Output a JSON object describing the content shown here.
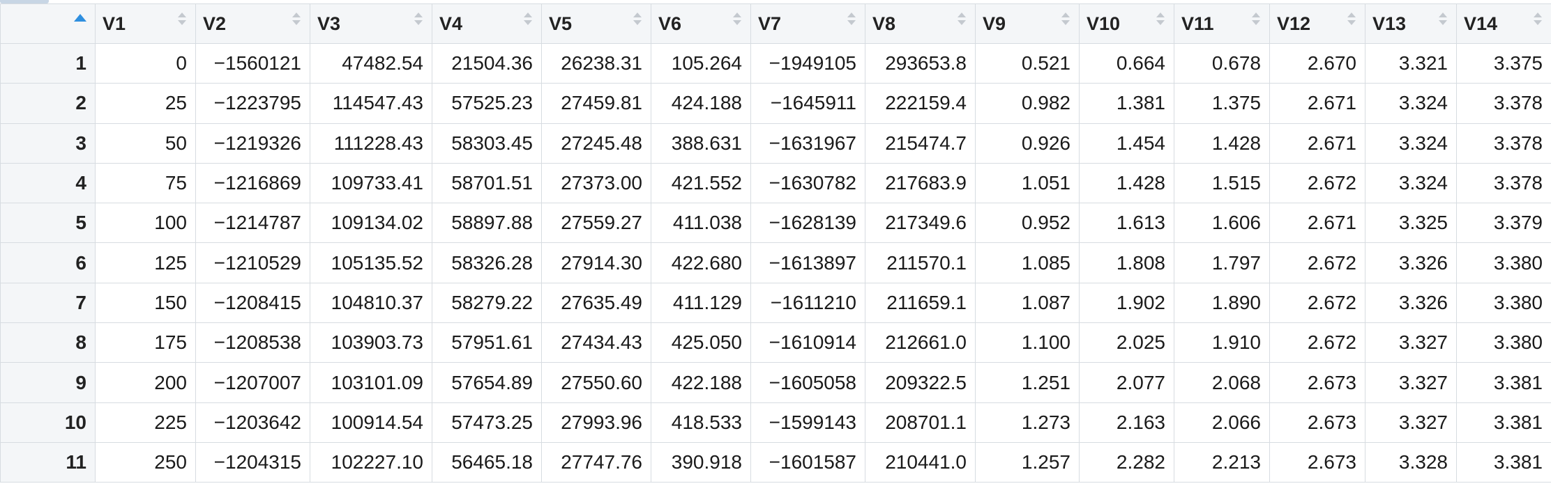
{
  "table": {
    "columns": [
      "V1",
      "V2",
      "V3",
      "V4",
      "V5",
      "V6",
      "V7",
      "V8",
      "V9",
      "V10",
      "V11",
      "V12",
      "V13",
      "V14"
    ],
    "sorted_column": "row-index",
    "sort_direction": "ascending",
    "rows": [
      {
        "index": "1",
        "cells": [
          "0",
          "−1560121",
          "47482.54",
          "21504.36",
          "26238.31",
          "105.264",
          "−1949105",
          "293653.8",
          "0.521",
          "0.664",
          "0.678",
          "2.670",
          "3.321",
          "3.375"
        ]
      },
      {
        "index": "2",
        "cells": [
          "25",
          "−1223795",
          "114547.43",
          "57525.23",
          "27459.81",
          "424.188",
          "−1645911",
          "222159.4",
          "0.982",
          "1.381",
          "1.375",
          "2.671",
          "3.324",
          "3.378"
        ]
      },
      {
        "index": "3",
        "cells": [
          "50",
          "−1219326",
          "111228.43",
          "58303.45",
          "27245.48",
          "388.631",
          "−1631967",
          "215474.7",
          "0.926",
          "1.454",
          "1.428",
          "2.671",
          "3.324",
          "3.378"
        ]
      },
      {
        "index": "4",
        "cells": [
          "75",
          "−1216869",
          "109733.41",
          "58701.51",
          "27373.00",
          "421.552",
          "−1630782",
          "217683.9",
          "1.051",
          "1.428",
          "1.515",
          "2.672",
          "3.324",
          "3.378"
        ]
      },
      {
        "index": "5",
        "cells": [
          "100",
          "−1214787",
          "109134.02",
          "58897.88",
          "27559.27",
          "411.038",
          "−1628139",
          "217349.6",
          "0.952",
          "1.613",
          "1.606",
          "2.671",
          "3.325",
          "3.379"
        ]
      },
      {
        "index": "6",
        "cells": [
          "125",
          "−1210529",
          "105135.52",
          "58326.28",
          "27914.30",
          "422.680",
          "−1613897",
          "211570.1",
          "1.085",
          "1.808",
          "1.797",
          "2.672",
          "3.326",
          "3.380"
        ]
      },
      {
        "index": "7",
        "cells": [
          "150",
          "−1208415",
          "104810.37",
          "58279.22",
          "27635.49",
          "411.129",
          "−1611210",
          "211659.1",
          "1.087",
          "1.902",
          "1.890",
          "2.672",
          "3.326",
          "3.380"
        ]
      },
      {
        "index": "8",
        "cells": [
          "175",
          "−1208538",
          "103903.73",
          "57951.61",
          "27434.43",
          "425.050",
          "−1610914",
          "212661.0",
          "1.100",
          "2.025",
          "1.910",
          "2.672",
          "3.327",
          "3.380"
        ]
      },
      {
        "index": "9",
        "cells": [
          "200",
          "−1207007",
          "103101.09",
          "57654.89",
          "27550.60",
          "422.188",
          "−1605058",
          "209322.5",
          "1.251",
          "2.077",
          "2.068",
          "2.673",
          "3.327",
          "3.381"
        ]
      },
      {
        "index": "10",
        "cells": [
          "225",
          "−1203642",
          "100914.54",
          "57473.25",
          "27993.96",
          "418.533",
          "−1599143",
          "208701.1",
          "1.273",
          "2.163",
          "2.066",
          "2.673",
          "3.327",
          "3.381"
        ]
      },
      {
        "index": "11",
        "cells": [
          "250",
          "−1204315",
          "102227.10",
          "56465.18",
          "27747.76",
          "390.918",
          "−1601587",
          "210441.0",
          "1.257",
          "2.282",
          "2.213",
          "2.673",
          "3.328",
          "3.381"
        ]
      }
    ]
  },
  "colors": {
    "header_bg": "#f4f6f8",
    "grid_line": "#d7dce1",
    "sort_active": "#2f8fdf",
    "sort_inactive": "#c4c9cf"
  }
}
